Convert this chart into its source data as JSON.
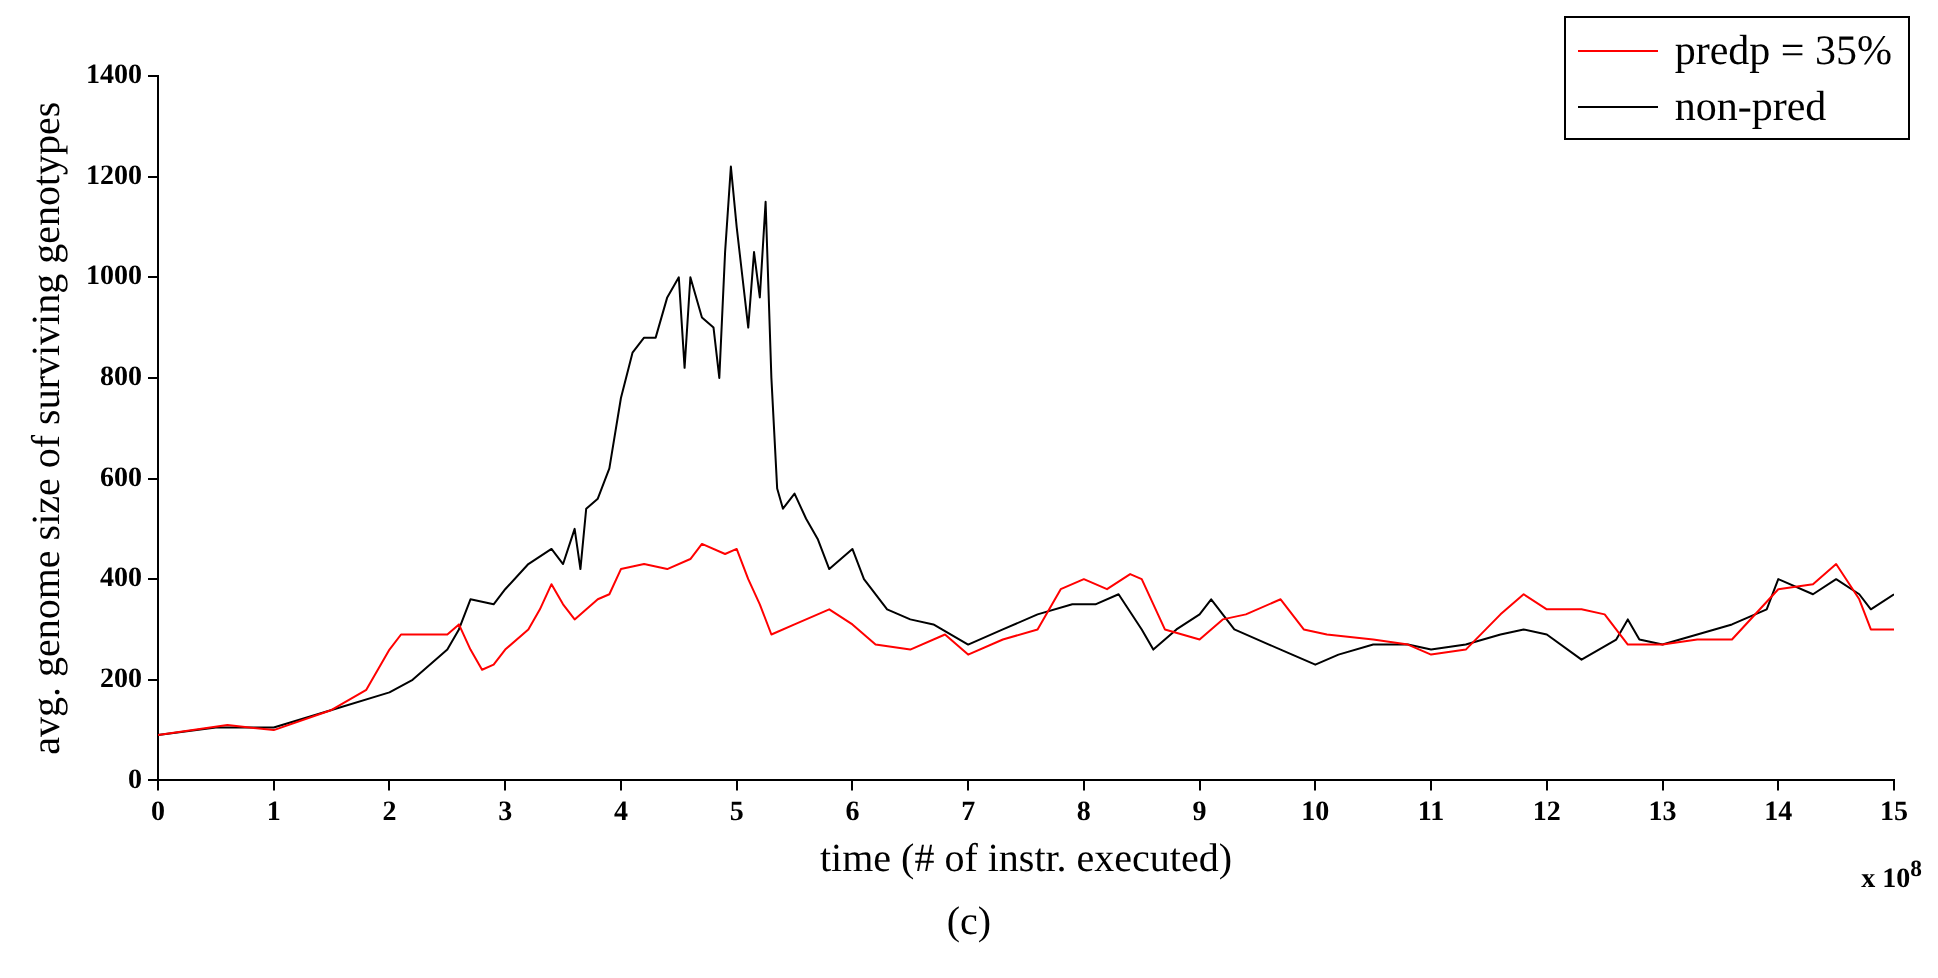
{
  "chart_data": {
    "type": "line",
    "xlabel": "time (# of instr. executed)",
    "ylabel": "avg. genome size of surviving genotypes",
    "annotations": [
      "x 10$^{8}$",
      "(c)"
    ],
    "xlim": [
      0,
      15
    ],
    "ylim": [
      0,
      1400
    ],
    "xticks": [
      0,
      1,
      2,
      3,
      4,
      5,
      6,
      7,
      8,
      9,
      10,
      11,
      12,
      13,
      14,
      15
    ],
    "yticks": [
      0,
      200,
      400,
      600,
      800,
      1000,
      1200,
      1400
    ],
    "grid": false,
    "legend": "top right",
    "marker": "none",
    "line_style": "solid",
    "series": [
      {
        "name": "predp = 35%",
        "color": "#ff0000",
        "x": [
          0,
          0.6,
          1,
          1.5,
          1.8,
          2.0,
          2.1,
          2.3,
          2.5,
          2.6,
          2.7,
          2.8,
          2.9,
          3.0,
          3.2,
          3.3,
          3.4,
          3.5,
          3.6,
          3.8,
          3.9,
          4.0,
          4.2,
          4.4,
          4.6,
          4.7,
          4.9,
          5.0,
          5.1,
          5.2,
          5.3,
          5.5,
          5.8,
          6.0,
          6.2,
          6.5,
          6.8,
          7.0,
          7.3,
          7.6,
          7.8,
          8.0,
          8.2,
          8.4,
          8.5,
          8.7,
          9.0,
          9.2,
          9.4,
          9.7,
          9.9,
          10.1,
          10.5,
          10.8,
          11.0,
          11.3,
          11.6,
          11.8,
          12.0,
          12.3,
          12.5,
          12.7,
          13.0,
          13.3,
          13.6,
          14.0,
          14.3,
          14.5,
          14.7,
          14.8,
          15.0
        ],
        "values": [
          90,
          110,
          100,
          140,
          180,
          260,
          290,
          290,
          290,
          310,
          260,
          220,
          230,
          260,
          300,
          340,
          390,
          350,
          320,
          360,
          370,
          420,
          430,
          420,
          440,
          470,
          450,
          460,
          400,
          350,
          290,
          310,
          340,
          310,
          270,
          260,
          290,
          250,
          280,
          300,
          380,
          400,
          380,
          410,
          400,
          300,
          280,
          320,
          330,
          360,
          300,
          290,
          280,
          270,
          250,
          260,
          330,
          370,
          340,
          340,
          330,
          270,
          270,
          280,
          280,
          380,
          390,
          430,
          360,
          300,
          300
        ]
      },
      {
        "name": "non-pred",
        "color": "#000000",
        "x": [
          0,
          0.5,
          1,
          1.5,
          2,
          2.2,
          2.5,
          2.6,
          2.7,
          2.9,
          3.0,
          3.2,
          3.4,
          3.5,
          3.6,
          3.65,
          3.7,
          3.8,
          3.9,
          4.0,
          4.1,
          4.2,
          4.3,
          4.4,
          4.5,
          4.55,
          4.6,
          4.7,
          4.8,
          4.85,
          4.9,
          4.95,
          5.0,
          5.05,
          5.1,
          5.15,
          5.2,
          5.25,
          5.3,
          5.35,
          5.4,
          5.5,
          5.6,
          5.7,
          5.8,
          5.9,
          6.0,
          6.1,
          6.3,
          6.5,
          6.7,
          7.0,
          7.3,
          7.6,
          7.9,
          8.1,
          8.3,
          8.5,
          8.6,
          8.8,
          9.0,
          9.1,
          9.3,
          9.6,
          9.8,
          10.0,
          10.2,
          10.5,
          10.8,
          11.0,
          11.3,
          11.6,
          11.8,
          12.0,
          12.3,
          12.6,
          12.7,
          12.8,
          13.0,
          13.3,
          13.6,
          13.9,
          14.0,
          14.3,
          14.5,
          14.7,
          14.8,
          15.0
        ],
        "values": [
          90,
          105,
          105,
          140,
          175,
          200,
          260,
          300,
          360,
          350,
          380,
          430,
          460,
          430,
          500,
          420,
          540,
          560,
          620,
          760,
          850,
          880,
          880,
          960,
          1000,
          820,
          1000,
          920,
          900,
          800,
          1050,
          1220,
          1100,
          1000,
          900,
          1050,
          960,
          1150,
          800,
          580,
          540,
          570,
          520,
          480,
          420,
          440,
          460,
          400,
          340,
          320,
          310,
          270,
          300,
          330,
          350,
          350,
          370,
          300,
          260,
          300,
          330,
          360,
          300,
          270,
          250,
          230,
          250,
          270,
          270,
          260,
          270,
          290,
          300,
          290,
          240,
          280,
          320,
          280,
          270,
          290,
          310,
          340,
          400,
          370,
          400,
          370,
          340,
          370
        ]
      }
    ]
  }
}
